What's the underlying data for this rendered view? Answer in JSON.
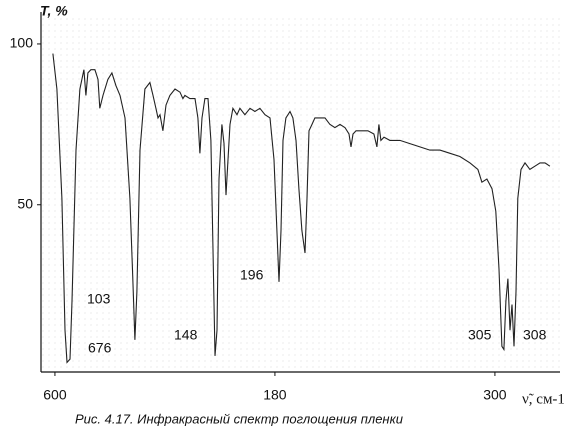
{
  "chart_data": {
    "type": "line",
    "y_label": "T, %",
    "x_label": "ν̃, см-1",
    "caption": "Рис. 4.17. Инфракрасный спектр поглощения  пленки",
    "annotations": [
      "103",
      "676",
      "148",
      "196",
      "305",
      "308"
    ],
    "xlim": [
      524,
      3355
    ],
    "ylim": [
      -2,
      109
    ],
    "xticks": [
      600,
      {
        "value": 1800,
        "label": "180"
      },
      {
        "value": 3000,
        "label": "300"
      }
    ],
    "yticks": [
      50,
      100
    ],
    "color": "#222222",
    "x": [
      589,
      611,
      638,
      655,
      666,
      682,
      693,
      715,
      736,
      758,
      769,
      780,
      796,
      818,
      835,
      845,
      862,
      889,
      911,
      933,
      955,
      982,
      1009,
      1025,
      1036,
      1047,
      1064,
      1091,
      1118,
      1135,
      1151,
      1162,
      1173,
      1189,
      1206,
      1227,
      1255,
      1282,
      1298,
      1309,
      1336,
      1364,
      1380,
      1391,
      1402,
      1418,
      1435,
      1451,
      1462,
      1473,
      1484,
      1495,
      1511,
      1522,
      1533,
      1544,
      1555,
      1571,
      1593,
      1609,
      1636,
      1664,
      1691,
      1718,
      1746,
      1773,
      1795,
      1811,
      1822,
      1833,
      1844,
      1860,
      1882,
      1898,
      1915,
      1931,
      1947,
      1964,
      1975,
      1986,
      2002,
      2018,
      2046,
      2073,
      2100,
      2127,
      2155,
      2182,
      2204,
      2215,
      2226,
      2242,
      2275,
      2307,
      2340,
      2356,
      2367,
      2378,
      2395,
      2427,
      2482,
      2536,
      2591,
      2645,
      2700,
      2755,
      2809,
      2864,
      2907,
      2929,
      2956,
      2984,
      3005,
      3022,
      3038,
      3049,
      3060,
      3071,
      3082,
      3093,
      3104,
      3115,
      3125,
      3142,
      3164,
      3191,
      3218,
      3246,
      3273,
      3300
    ],
    "values": [
      97,
      86,
      52,
      11,
      1,
      2,
      20,
      67,
      86,
      92,
      84,
      91,
      92,
      92,
      89,
      80,
      84,
      89,
      91,
      87,
      84,
      77,
      52,
      27,
      8,
      23,
      67,
      86,
      88,
      84,
      80,
      77,
      78,
      73,
      81,
      84,
      86,
      85,
      83,
      84,
      83,
      83,
      77,
      66,
      77,
      83,
      83,
      70,
      36,
      3,
      11,
      58,
      75,
      69,
      53,
      64,
      75,
      80,
      78,
      80,
      78,
      80,
      79,
      80,
      78,
      77,
      64,
      42,
      26,
      42,
      70,
      77,
      79,
      77,
      70,
      55,
      42,
      35,
      52,
      73,
      75,
      77,
      77,
      77,
      75,
      74,
      75,
      74,
      72,
      68,
      72,
      73,
      73,
      73,
      72,
      68,
      75,
      70,
      71,
      70,
      70,
      69,
      68,
      67,
      67,
      66,
      65,
      63,
      61,
      57,
      58,
      55,
      48,
      30,
      6,
      5,
      20,
      27,
      11,
      19,
      6,
      23,
      52,
      61,
      63,
      61,
      62,
      63,
      63,
      62
    ]
  }
}
